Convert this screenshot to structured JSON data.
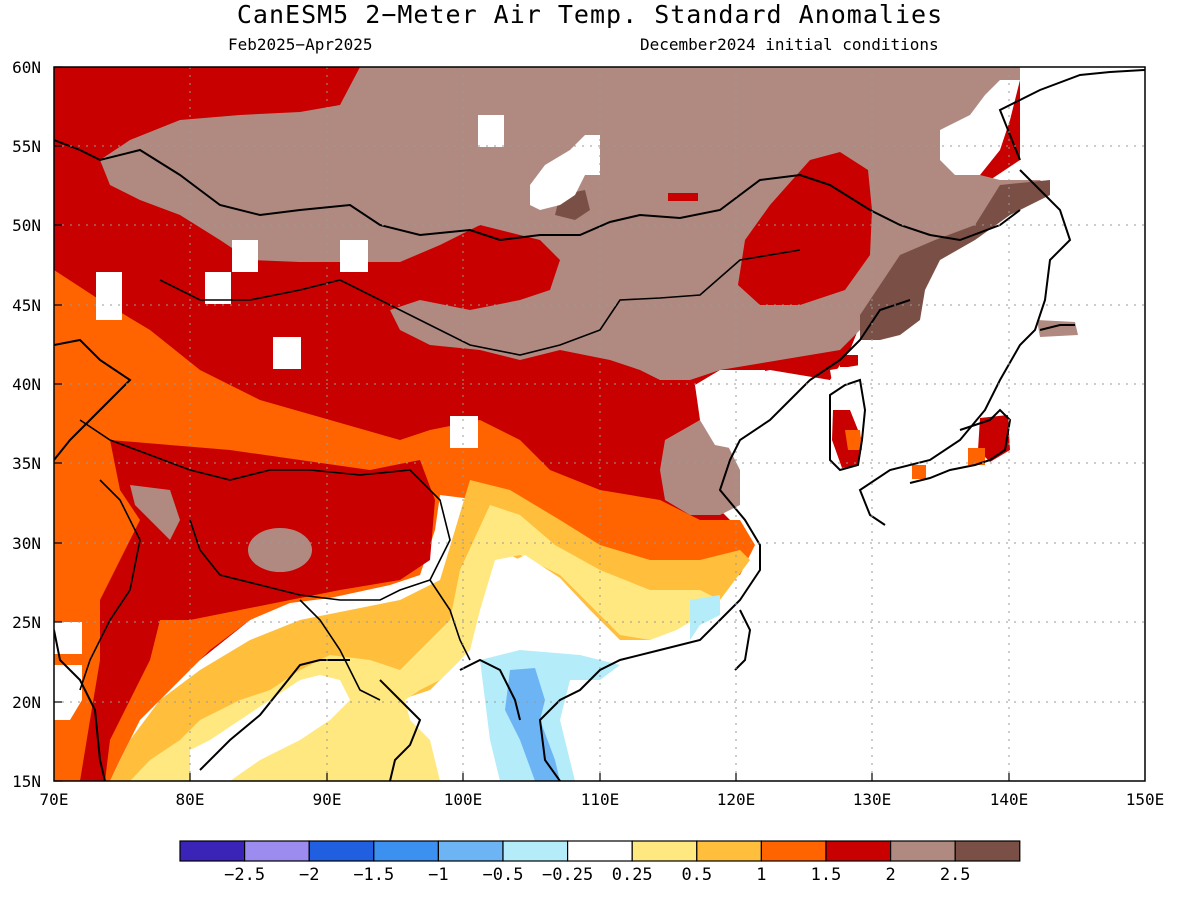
{
  "title": "CanESM5 2−Meter Air Temp. Standard Anomalies",
  "subtitle_left": "Feb2025−Apr2025",
  "subtitle_right": "December2024 initial conditions",
  "lat_ticks": [
    "60N",
    "55N",
    "50N",
    "45N",
    "40N",
    "35N",
    "30N",
    "25N",
    "20N",
    "15N"
  ],
  "lon_ticks": [
    "70E",
    "80E",
    "90E",
    "100E",
    "110E",
    "120E",
    "130E",
    "140E",
    "150E"
  ],
  "colorbar": {
    "colors": [
      "#3a24b8",
      "#9c8cf0",
      "#2060e0",
      "#3c90f0",
      "#6cb4f4",
      "#b4ecfa",
      "#ffffff",
      "#ffe880",
      "#ffbe3c",
      "#ff6400",
      "#c80000",
      "#b08a80",
      "#7a5046"
    ],
    "labels": [
      "−2.5",
      "−2",
      "−1.5",
      "−1",
      "−0.5",
      "−0.25",
      "0.25",
      "0.5",
      "1",
      "1.5",
      "2",
      "2.5"
    ]
  },
  "map": {
    "lon_range": [
      70,
      150
    ],
    "lat_range": [
      15,
      60
    ],
    "anomaly_colors": {
      "neg_025_05": "#b4ecfa",
      "neg_05_1": "#6cb4f4",
      "pos_025_05": "#ffe880",
      "pos_05_1": "#ffbe3c",
      "pos_1_15": "#ff6400",
      "pos_15_2": "#c80000",
      "pos_2_25": "#b08a80",
      "pos_gt_25": "#7a5046"
    }
  }
}
